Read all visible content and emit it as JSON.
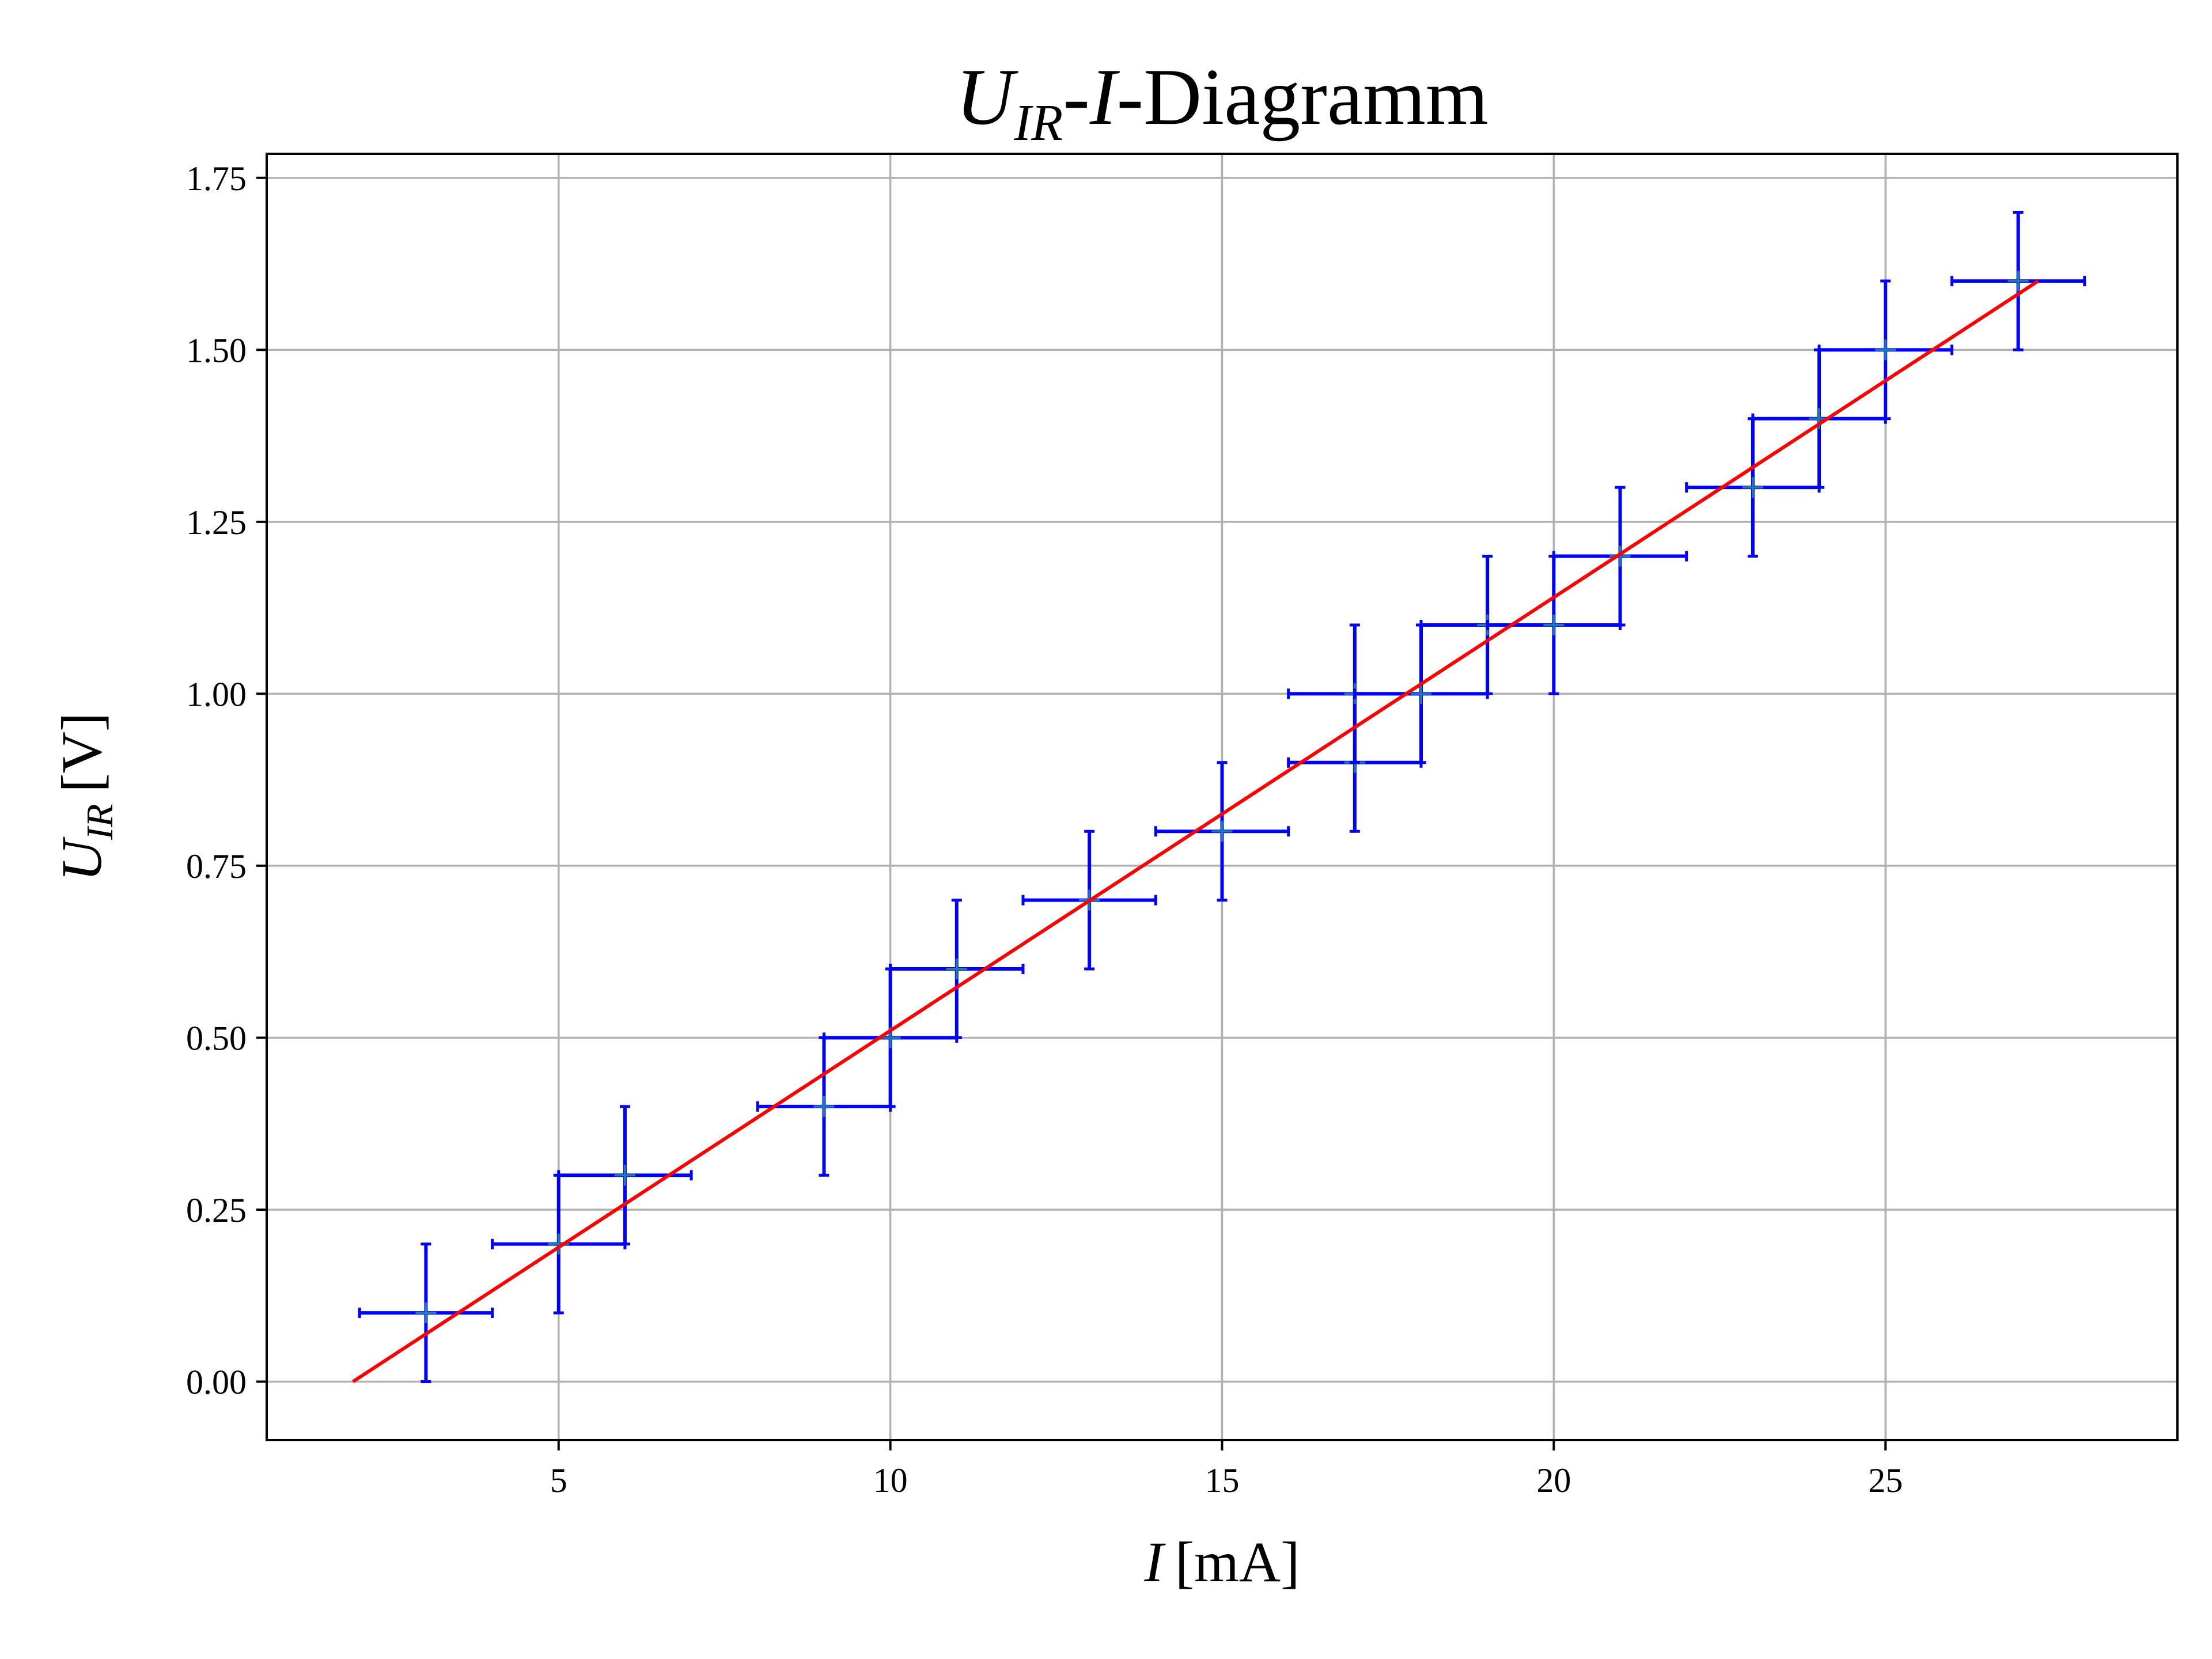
{
  "chart_data": {
    "type": "scatter",
    "title": {
      "var": "U",
      "sub": "IR",
      "rest_var": "I",
      "suffix": "-Diagramm"
    },
    "xlabel": {
      "var": "I",
      "unit": "[mA]"
    },
    "ylabel": {
      "var": "U",
      "sub": "IR",
      "unit": "[V]"
    },
    "xlim": [
      0.6,
      29.4
    ],
    "ylim": [
      -0.085,
      1.785
    ],
    "xticks": [
      5,
      10,
      15,
      20,
      25
    ],
    "xtick_labels": [
      "5",
      "10",
      "15",
      "20",
      "25"
    ],
    "yticks": [
      0.0,
      0.25,
      0.5,
      0.75,
      1.0,
      1.25,
      1.5,
      1.75
    ],
    "ytick_labels": [
      "0.00",
      "0.25",
      "0.50",
      "0.75",
      "1.00",
      "1.25",
      "1.50",
      "1.75"
    ],
    "grid": true,
    "series": [
      {
        "kind": "errorbar",
        "color": "#0000ff",
        "marker_color": "#1f77b4",
        "x_err": 1.0,
        "y_err": 0.1,
        "points": [
          [
            3,
            0.1
          ],
          [
            5,
            0.2
          ],
          [
            6,
            0.3
          ],
          [
            9,
            0.4
          ],
          [
            10,
            0.5
          ],
          [
            11,
            0.6
          ],
          [
            13,
            0.7
          ],
          [
            15,
            0.8
          ],
          [
            17,
            0.9
          ],
          [
            17,
            1.0
          ],
          [
            18,
            1.0
          ],
          [
            19,
            1.1
          ],
          [
            20,
            1.1
          ],
          [
            21,
            1.2
          ],
          [
            23,
            1.3
          ],
          [
            24,
            1.4
          ],
          [
            25,
            1.5
          ],
          [
            27,
            1.6
          ]
        ]
      },
      {
        "kind": "fit-line",
        "color": "#ff0000",
        "x": [
          1.9,
          27.3
        ],
        "y": [
          0.0,
          1.6
        ]
      }
    ]
  }
}
